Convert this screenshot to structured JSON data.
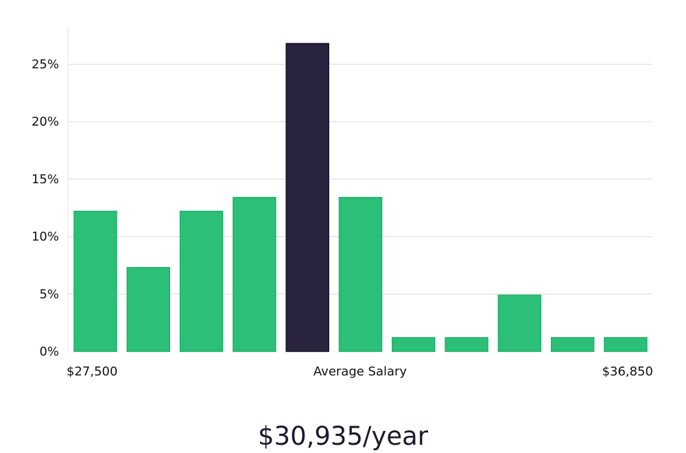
{
  "chart_data": {
    "type": "bar",
    "title": "",
    "xlabel": "",
    "ylabel": "",
    "ylim": [
      0,
      28
    ],
    "yticks": [
      {
        "value": 0,
        "label": "0%"
      },
      {
        "value": 5,
        "label": "5%"
      },
      {
        "value": 10,
        "label": "10%"
      },
      {
        "value": 15,
        "label": "15%"
      },
      {
        "value": 20,
        "label": "20%"
      },
      {
        "value": 25,
        "label": "25%"
      }
    ],
    "grid": true,
    "x_labels": {
      "left": "$27,500",
      "center": "Average Salary",
      "right": "$36,850"
    },
    "values": [
      12.2,
      7.3,
      12.2,
      13.4,
      26.8,
      13.4,
      1.2,
      1.2,
      4.9,
      1.2,
      1.2
    ],
    "highlight_index": 4,
    "colors": {
      "bar": "#2bbf77",
      "bar_stroke": "#22b06c",
      "highlight": "#29233f",
      "highlight_stroke": "#15112a",
      "grid": "#d9d9d9",
      "axis": "#e6e6e6"
    }
  },
  "caption": {
    "salary": "$30,935/year"
  }
}
